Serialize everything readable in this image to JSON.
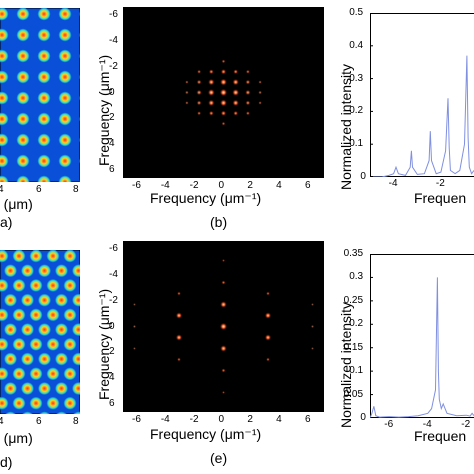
{
  "panels": {
    "a": {
      "letter": "a)",
      "xlabel": "n (μm)",
      "xticks": [
        "4",
        "6",
        "8"
      ]
    },
    "b": {
      "letter": "(b)",
      "xlabel": "Frequency (μm⁻¹)",
      "ylabel": "Frequency (μm⁻¹)",
      "xticks": [
        "-6",
        "-4",
        "-2",
        "0",
        "2",
        "4",
        "6"
      ],
      "yticks": [
        "-6",
        "-4",
        "-2",
        "0",
        "2",
        "4",
        "6"
      ]
    },
    "c": {
      "ylabel": "Normalized intensity",
      "xlabel": "Frequen",
      "yticks": [
        "0",
        "0.1",
        "0.2",
        "0.3",
        "0.4",
        "0.5"
      ],
      "xticks": [
        "-4",
        "-2"
      ]
    },
    "d": {
      "letter": "d)",
      "xlabel": "n (μm)",
      "xticks": [
        "4",
        "6",
        "8"
      ]
    },
    "e": {
      "letter": "(e)",
      "xlabel": "Frequency (μm⁻¹)",
      "ylabel": "Frequency (μm⁻¹)",
      "xticks": [
        "-6",
        "-4",
        "-2",
        "0",
        "2",
        "4",
        "6"
      ],
      "yticks": [
        "-6",
        "-4",
        "-2",
        "0",
        "2",
        "4",
        "6"
      ]
    },
    "f": {
      "ylabel": "Normalized intensity",
      "xlabel": "Frequen",
      "yticks": [
        "0",
        "0.05",
        "0.1",
        "0.15",
        "0.2",
        "0.25",
        "0.3",
        "0.35"
      ],
      "xticks": [
        "-6",
        "-4",
        "-2"
      ]
    }
  },
  "colors": {
    "field_bg": "#0a4fd8",
    "spot_core": "#ff3020",
    "spectrum_bg": "#000000",
    "peak_line": "#8090e0"
  },
  "chart_data": [
    {
      "type": "heatmap",
      "panel": "b",
      "description_ref": "2D Fourier spectrum, square-lattice peaks",
      "xlim": [
        -7,
        7
      ],
      "ylim": [
        7,
        -7
      ],
      "points": [
        [
          0,
          0,
          1.0
        ],
        [
          0.85,
          0,
          0.9
        ],
        [
          -0.85,
          0,
          0.9
        ],
        [
          0,
          0.85,
          0.9
        ],
        [
          0,
          -0.85,
          0.9
        ],
        [
          0.85,
          0.85,
          0.8
        ],
        [
          -0.85,
          0.85,
          0.8
        ],
        [
          0.85,
          -0.85,
          0.8
        ],
        [
          -0.85,
          -0.85,
          0.8
        ],
        [
          1.7,
          0,
          0.6
        ],
        [
          -1.7,
          0,
          0.6
        ],
        [
          0,
          1.7,
          0.6
        ],
        [
          0,
          -1.7,
          0.6
        ],
        [
          1.7,
          0.85,
          0.5
        ],
        [
          -1.7,
          0.85,
          0.5
        ],
        [
          1.7,
          -0.85,
          0.5
        ],
        [
          -1.7,
          -0.85,
          0.5
        ],
        [
          0.85,
          1.7,
          0.5
        ],
        [
          -0.85,
          1.7,
          0.5
        ],
        [
          0.85,
          -1.7,
          0.5
        ],
        [
          -0.85,
          -1.7,
          0.5
        ],
        [
          1.7,
          1.7,
          0.35
        ],
        [
          -1.7,
          1.7,
          0.35
        ],
        [
          1.7,
          -1.7,
          0.35
        ],
        [
          -1.7,
          -1.7,
          0.35
        ],
        [
          2.55,
          0,
          0.3
        ],
        [
          -2.55,
          0,
          0.3
        ],
        [
          0,
          2.55,
          0.3
        ],
        [
          0,
          -2.55,
          0.3
        ],
        [
          2.55,
          0.85,
          0.25
        ],
        [
          -2.55,
          0.85,
          0.25
        ],
        [
          2.55,
          -0.85,
          0.25
        ],
        [
          -2.55,
          -0.85,
          0.25
        ]
      ]
    },
    {
      "type": "line",
      "panel": "c",
      "xlim": [
        -5,
        -0.6
      ],
      "ylim": [
        0,
        0.5
      ],
      "x": [
        -5.0,
        -4.5,
        -4.2,
        -4.0,
        -3.9,
        -3.8,
        -3.5,
        -3.3,
        -3.25,
        -3.2,
        -3.0,
        -2.7,
        -2.5,
        -2.45,
        -2.4,
        -2.2,
        -2.0,
        -1.8,
        -1.7,
        -1.65,
        -1.6,
        -1.4,
        -1.2,
        -1.0,
        -0.9,
        -0.85,
        -0.8,
        -0.7,
        -0.6
      ],
      "y": [
        0.0,
        0.0,
        0.005,
        0.01,
        0.03,
        0.01,
        0.005,
        0.03,
        0.08,
        0.03,
        0.008,
        0.01,
        0.05,
        0.14,
        0.05,
        0.01,
        0.015,
        0.08,
        0.24,
        0.09,
        0.02,
        0.01,
        0.02,
        0.1,
        0.37,
        0.12,
        0.03,
        0.01,
        0.02
      ]
    },
    {
      "type": "heatmap",
      "panel": "e",
      "description_ref": "2D Fourier spectrum, sparse hexagonal peaks",
      "xlim": [
        -7,
        7
      ],
      "ylim": [
        7,
        -7
      ],
      "points": [
        [
          0,
          0,
          1.0
        ],
        [
          0,
          -1.8,
          0.85
        ],
        [
          0,
          1.8,
          0.85
        ],
        [
          -3.1,
          -0.9,
          0.8
        ],
        [
          3.1,
          -0.9,
          0.8
        ],
        [
          -3.1,
          0.9,
          0.8
        ],
        [
          3.1,
          0.9,
          0.8
        ],
        [
          0,
          -3.6,
          0.35
        ],
        [
          0,
          3.6,
          0.35
        ],
        [
          -3.1,
          -2.7,
          0.3
        ],
        [
          3.1,
          -2.7,
          0.3
        ],
        [
          -3.1,
          2.7,
          0.3
        ],
        [
          3.1,
          2.7,
          0.3
        ],
        [
          -6.2,
          0,
          0.2
        ],
        [
          6.2,
          0,
          0.2
        ],
        [
          0,
          -5.4,
          0.15
        ],
        [
          0,
          5.4,
          0.15
        ],
        [
          -6.2,
          -1.8,
          0.15
        ],
        [
          6.2,
          -1.8,
          0.15
        ],
        [
          -6.2,
          1.8,
          0.15
        ],
        [
          6.2,
          1.8,
          0.15
        ]
      ]
    },
    {
      "type": "line",
      "panel": "f",
      "xlim": [
        -7,
        -1.6
      ],
      "ylim": [
        0,
        0.35
      ],
      "x": [
        -7.0,
        -6.9,
        -6.8,
        -6.7,
        -6.5,
        -6.0,
        -5.5,
        -5.0,
        -4.5,
        -4.0,
        -3.8,
        -3.6,
        -3.5,
        -3.45,
        -3.4,
        -3.3,
        -3.2,
        -3.0,
        -2.5,
        -2.0,
        -1.8,
        -1.7,
        -1.6
      ],
      "y": [
        0.0,
        0.01,
        0.025,
        0.005,
        0.002,
        0.003,
        0.002,
        0.003,
        0.005,
        0.01,
        0.02,
        0.06,
        0.3,
        0.1,
        0.04,
        0.02,
        0.03,
        0.01,
        0.005,
        0.006,
        0.004,
        0.01,
        0.005
      ]
    }
  ]
}
